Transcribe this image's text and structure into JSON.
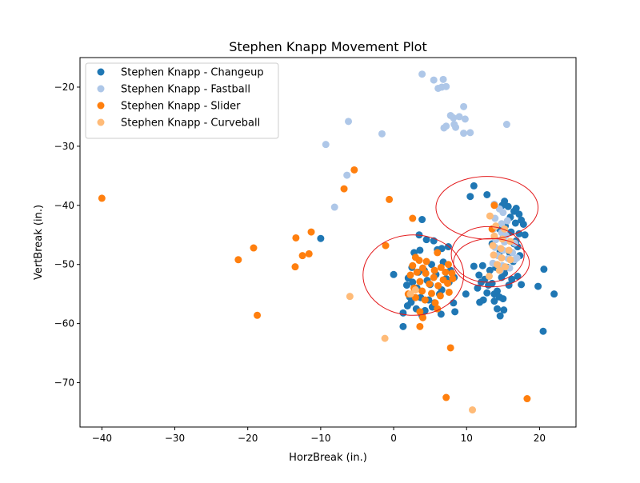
{
  "chart_data": {
    "type": "scatter",
    "title": "Stephen Knapp Movement Plot",
    "xlabel": "HorzBreak (in.)",
    "ylabel": "VertBreak (in.)",
    "xlim": [
      -43,
      25
    ],
    "ylim": [
      -77.5,
      -15
    ],
    "xticks": [
      -40,
      -30,
      -20,
      -10,
      0,
      10,
      20
    ],
    "yticks": [
      -70,
      -60,
      -50,
      -40,
      -30,
      -20
    ],
    "xtick_labels": [
      "−40",
      "−30",
      "−20",
      "−10",
      "0",
      "10",
      "20"
    ],
    "ytick_labels": [
      "−70",
      "−60",
      "−50",
      "−40",
      "−30",
      "−20"
    ],
    "grid": false,
    "legend_position": "upper-left",
    "series": [
      {
        "name": "Stephen Knapp - Changeup",
        "color": "#1f77b4",
        "points": [
          [
            11.0,
            -36.7
          ],
          [
            12.8,
            -38.2
          ],
          [
            10.5,
            -38.5
          ],
          [
            3.9,
            -42.4
          ],
          [
            15.2,
            -39.3
          ],
          [
            15.7,
            -40.2
          ],
          [
            16.5,
            -41.0
          ],
          [
            17.2,
            -41.5
          ],
          [
            16.8,
            -40.5
          ],
          [
            14.9,
            -40.0
          ],
          [
            16.0,
            -42.0
          ],
          [
            17.5,
            -42.5
          ],
          [
            16.7,
            -43.0
          ],
          [
            17.8,
            -43.2
          ],
          [
            15.3,
            -43.5
          ],
          [
            16.1,
            -44.5
          ],
          [
            17.2,
            -44.8
          ],
          [
            18.0,
            -45.0
          ],
          [
            15.0,
            -45.5
          ],
          [
            16.5,
            -46.5
          ],
          [
            17.0,
            -47.0
          ],
          [
            15.9,
            -48.0
          ],
          [
            17.3,
            -48.5
          ],
          [
            16.4,
            -49.5
          ],
          [
            15.6,
            -50.5
          ],
          [
            15.2,
            -51.5
          ],
          [
            17.0,
            -52.0
          ],
          [
            16.2,
            -52.5
          ],
          [
            14.8,
            -52.2
          ],
          [
            15.8,
            -53.5
          ],
          [
            17.5,
            -53.4
          ],
          [
            14.2,
            -54.5
          ],
          [
            13.8,
            -55.0
          ],
          [
            13.0,
            -53.5
          ],
          [
            12.5,
            -52.5
          ],
          [
            11.7,
            -51.8
          ],
          [
            12.0,
            -53.0
          ],
          [
            11.5,
            -54.0
          ],
          [
            12.8,
            -54.8
          ],
          [
            13.5,
            -53.2
          ],
          [
            14.0,
            -50.5
          ],
          [
            13.2,
            -51.0
          ],
          [
            12.2,
            -50.2
          ],
          [
            11.0,
            -50.3
          ],
          [
            14.5,
            -55.5
          ],
          [
            15.0,
            -55.8
          ],
          [
            13.8,
            -56.2
          ],
          [
            14.2,
            -57.5
          ],
          [
            15.1,
            -57.7
          ],
          [
            14.6,
            -58.7
          ],
          [
            12.3,
            -56.0
          ],
          [
            11.8,
            -56.4
          ],
          [
            9.9,
            -55.0
          ],
          [
            8.2,
            -56.5
          ],
          [
            8.4,
            -58.0
          ],
          [
            19.8,
            -53.7
          ],
          [
            20.6,
            -50.8
          ],
          [
            22.0,
            -55.0
          ],
          [
            20.5,
            -61.3
          ],
          [
            -10.0,
            -45.6
          ],
          [
            4.5,
            -45.8
          ],
          [
            5.5,
            -46.0
          ],
          [
            3.5,
            -45.0
          ],
          [
            6.6,
            -47.3
          ],
          [
            7.5,
            -47.0
          ],
          [
            2.8,
            -48.0
          ],
          [
            3.6,
            -47.6
          ],
          [
            2.5,
            -50.5
          ],
          [
            4.2,
            -51.0
          ],
          [
            5.2,
            -50.0
          ],
          [
            6.8,
            -49.6
          ],
          [
            7.8,
            -51.0
          ],
          [
            8.3,
            -52.2
          ],
          [
            1.8,
            -53.5
          ],
          [
            2.6,
            -53.0
          ],
          [
            3.2,
            -54.0
          ],
          [
            5.0,
            -53.4
          ],
          [
            6.6,
            -54.3
          ],
          [
            7.6,
            -53.0
          ],
          [
            2.2,
            -55.5
          ],
          [
            3.7,
            -55.6
          ],
          [
            4.8,
            -56.0
          ],
          [
            5.6,
            -56.5
          ],
          [
            6.3,
            -55.0
          ],
          [
            1.9,
            -57.0
          ],
          [
            2.4,
            -56.4
          ],
          [
            3.1,
            -57.5
          ],
          [
            4.3,
            -57.8
          ],
          [
            5.3,
            -57.2
          ],
          [
            6.5,
            -58.4
          ],
          [
            1.3,
            -58.2
          ],
          [
            3.9,
            -58.7
          ],
          [
            1.3,
            -60.5
          ],
          [
            0.0,
            -51.7
          ],
          [
            2.0,
            -52.3
          ],
          [
            3.4,
            -51.3
          ],
          [
            4.6,
            -52.7
          ],
          [
            5.8,
            -51.7
          ],
          [
            7.2,
            -52.4
          ],
          [
            6.0,
            -47.5
          ],
          [
            14.5,
            -44.0
          ],
          [
            13.5,
            -46.5
          ],
          [
            14.6,
            -47.8
          ],
          [
            16.8,
            -46.0
          ]
        ]
      },
      {
        "name": "Stephen Knapp - Fastball",
        "color": "#aec7e8",
        "points": [
          [
            3.9,
            -17.8
          ],
          [
            5.5,
            -18.8
          ],
          [
            6.8,
            -18.7
          ],
          [
            6.1,
            -20.2
          ],
          [
            6.6,
            -20.0
          ],
          [
            7.2,
            -19.9
          ],
          [
            9.6,
            -23.3
          ],
          [
            7.8,
            -24.8
          ],
          [
            8.2,
            -25.2
          ],
          [
            9.0,
            -25.0
          ],
          [
            9.8,
            -25.4
          ],
          [
            8.3,
            -26.3
          ],
          [
            7.2,
            -26.6
          ],
          [
            6.9,
            -26.9
          ],
          [
            15.5,
            -26.3
          ],
          [
            8.5,
            -26.8
          ],
          [
            9.6,
            -27.8
          ],
          [
            10.5,
            -27.7
          ],
          [
            -6.2,
            -25.8
          ],
          [
            -1.6,
            -27.9
          ],
          [
            -9.3,
            -29.7
          ],
          [
            -6.4,
            -34.9
          ],
          [
            -8.1,
            -40.3
          ],
          [
            13.8,
            -39.8
          ],
          [
            14.5,
            -40.6
          ],
          [
            15.0,
            -41.2
          ],
          [
            13.9,
            -42.2
          ],
          [
            14.8,
            -43.1
          ],
          [
            15.6,
            -42.6
          ],
          [
            13.7,
            -44.0
          ],
          [
            14.8,
            -44.6
          ],
          [
            15.4,
            -45.1
          ],
          [
            14.0,
            -45.8
          ],
          [
            15.2,
            -46.2
          ],
          [
            16.6,
            -46.4
          ],
          [
            13.9,
            -47.1
          ],
          [
            15.0,
            -47.6
          ],
          [
            16.3,
            -48.0
          ],
          [
            14.3,
            -48.5
          ],
          [
            15.7,
            -49.0
          ],
          [
            16.6,
            -49.2
          ],
          [
            13.6,
            -49.8
          ],
          [
            14.9,
            -50.2
          ],
          [
            14.6,
            -51.0
          ],
          [
            15.9,
            -50.6
          ],
          [
            16.9,
            -48.9
          ]
        ]
      },
      {
        "name": "Stephen Knapp - Slider",
        "color": "#ff7f0e",
        "points": [
          [
            -40.0,
            -38.8
          ],
          [
            -5.4,
            -34.0
          ],
          [
            -6.8,
            -37.2
          ],
          [
            -0.6,
            -39.0
          ],
          [
            -11.3,
            -44.5
          ],
          [
            -13.4,
            -45.5
          ],
          [
            -12.5,
            -48.5
          ],
          [
            -11.6,
            -48.2
          ],
          [
            -21.3,
            -49.2
          ],
          [
            -19.2,
            -47.2
          ],
          [
            -13.5,
            -50.4
          ],
          [
            -18.7,
            -58.6
          ],
          [
            -1.1,
            -46.8
          ],
          [
            2.6,
            -42.2
          ],
          [
            13.8,
            -40.0
          ],
          [
            13.5,
            -44.0
          ],
          [
            3.0,
            -48.8
          ],
          [
            4.5,
            -49.5
          ],
          [
            6.0,
            -48.0
          ],
          [
            6.5,
            -50.5
          ],
          [
            7.5,
            -50.0
          ],
          [
            3.2,
            -51.3
          ],
          [
            4.4,
            -51.5
          ],
          [
            5.5,
            -52.2
          ],
          [
            6.8,
            -52.6
          ],
          [
            2.3,
            -51.8
          ],
          [
            3.6,
            -52.9
          ],
          [
            4.9,
            -53.3
          ],
          [
            6.1,
            -53.6
          ],
          [
            7.4,
            -53.2
          ],
          [
            2.8,
            -54.0
          ],
          [
            3.9,
            -54.5
          ],
          [
            5.2,
            -54.9
          ],
          [
            6.4,
            -55.3
          ],
          [
            7.6,
            -54.7
          ],
          [
            3.0,
            -55.6
          ],
          [
            4.3,
            -56.0
          ],
          [
            5.7,
            -56.5
          ],
          [
            2.0,
            -55.0
          ],
          [
            8.0,
            -51.5
          ],
          [
            6.0,
            -57.5
          ],
          [
            3.6,
            -58.0
          ],
          [
            4.0,
            -59.0
          ],
          [
            3.6,
            -60.5
          ],
          [
            7.8,
            -64.1
          ],
          [
            7.2,
            -72.5
          ],
          [
            18.3,
            -72.7
          ],
          [
            2.6,
            -50.2
          ],
          [
            4.0,
            -50.6
          ],
          [
            5.6,
            -51.0
          ],
          [
            7.1,
            -51.3
          ],
          [
            8.1,
            -52.4
          ],
          [
            3.5,
            -49.3
          ]
        ]
      },
      {
        "name": "Stephen Knapp - Curveball",
        "color": "#ffbb78",
        "points": [
          [
            13.2,
            -41.8
          ],
          [
            14.0,
            -43.5
          ],
          [
            15.2,
            -44.0
          ],
          [
            13.8,
            -45.2
          ],
          [
            14.9,
            -45.7
          ],
          [
            16.0,
            -46.1
          ],
          [
            13.6,
            -46.8
          ],
          [
            14.7,
            -47.3
          ],
          [
            15.8,
            -47.6
          ],
          [
            13.7,
            -48.4
          ],
          [
            14.8,
            -48.9
          ],
          [
            16.0,
            -49.2
          ],
          [
            14.2,
            -50.0
          ],
          [
            15.3,
            -50.4
          ],
          [
            14.5,
            -51.0
          ],
          [
            13.1,
            -52.0
          ],
          [
            -6.0,
            -55.4
          ],
          [
            -1.2,
            -62.5
          ],
          [
            10.8,
            -74.6
          ],
          [
            2.3,
            -55.0
          ],
          [
            3.0,
            -54.3
          ]
        ]
      }
    ],
    "ellipses": [
      {
        "center": [
          12.8,
          -40.4
        ],
        "rx": 7.0,
        "ry": 5.3,
        "color": "#e31a1c"
      },
      {
        "center": [
          12.9,
          -48.3
        ],
        "rx": 5.0,
        "ry": 4.7,
        "color": "#e31a1c"
      },
      {
        "center": [
          13.4,
          -49.7
        ],
        "rx": 5.2,
        "ry": 4.1,
        "color": "#e31a1c"
      },
      {
        "center": [
          2.7,
          -51.8
        ],
        "rx": 6.9,
        "ry": 6.8,
        "color": "#e31a1c"
      }
    ]
  }
}
